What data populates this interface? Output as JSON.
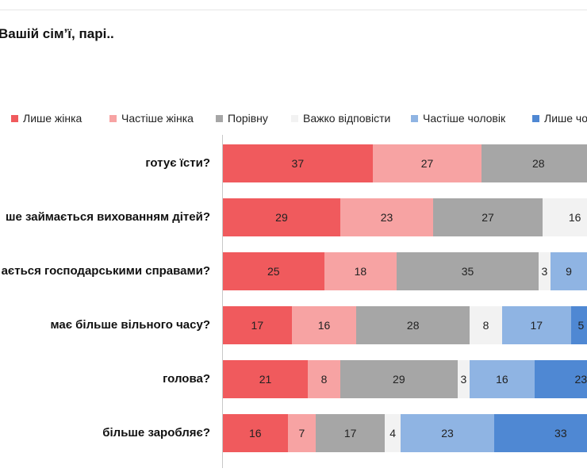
{
  "title": "Вашій сім’ї, парі..",
  "chart_data": {
    "type": "bar",
    "orientation": "horizontal",
    "stacked": true,
    "categories": [
      "готує їсти?",
      "ше займається вихованням дітей?",
      "ається господарськими справами?",
      "має більше вільного часу?",
      "голова?",
      "більше заробляє?"
    ],
    "series": [
      {
        "name": "Лише жінка",
        "color": "#f05a5d",
        "values": [
          37,
          29,
          25,
          17,
          21,
          16
        ]
      },
      {
        "name": "Частіше  жінка",
        "color": "#f7a3a3",
        "values": [
          27,
          23,
          18,
          16,
          8,
          7
        ]
      },
      {
        "name": "Порівну",
        "color": "#a6a6a6",
        "values": [
          28,
          27,
          35,
          28,
          29,
          17
        ]
      },
      {
        "name": "Важко відповісти",
        "color": "#f2f2f2",
        "values": [
          null,
          16,
          3,
          8,
          3,
          4
        ]
      },
      {
        "name": "Частіше  чоловік",
        "color": "#8fb4e3",
        "values": [
          null,
          null,
          9,
          17,
          16,
          23
        ]
      },
      {
        "name": "Лише чол",
        "color": "#4f88d3",
        "values": [
          null,
          null,
          null,
          5,
          23,
          33
        ]
      }
    ],
    "xlim": [
      0,
      100
    ],
    "legend_position": "top",
    "grid": false
  }
}
